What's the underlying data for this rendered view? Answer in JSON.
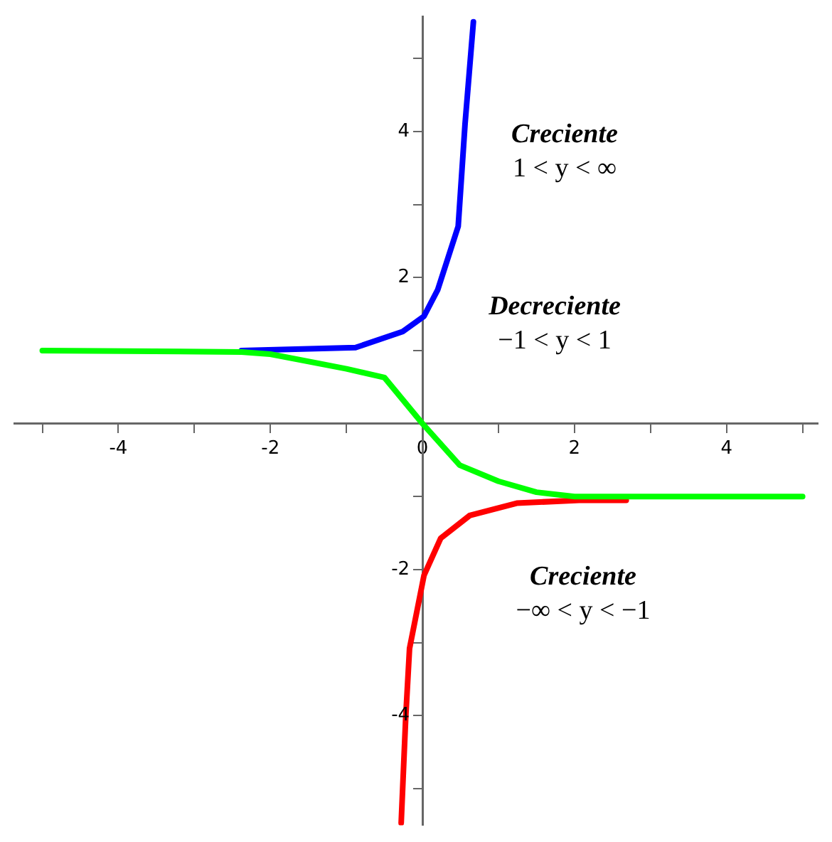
{
  "chart_data": {
    "type": "line",
    "x": [
      -5,
      -2.38,
      -2,
      -1,
      -0.5,
      0,
      0.49,
      1,
      1.5,
      2,
      3,
      5
    ],
    "series": [
      {
        "color": "#00ff00",
        "values": [
          1,
          0.98,
          0.95,
          0.75,
          0.63,
          0,
          -0.57,
          -0.79,
          -0.94,
          -1,
          -1,
          -1
        ]
      },
      {
        "color": "#0000ff",
        "x": [
          -2.38,
          -0.88,
          -0.26,
          0.02,
          0.2,
          0.47,
          0.56,
          0.67
        ],
        "values": [
          1,
          1.04,
          1.26,
          1.47,
          1.83,
          2.7,
          4.1,
          5.5
        ]
      },
      {
        "color": "#ff0000",
        "x": [
          -0.28,
          -0.22,
          -0.17,
          0.02,
          0.24,
          0.62,
          1.24,
          2.06,
          2.68
        ],
        "values": [
          -5.47,
          -4.02,
          -3.08,
          -2.08,
          -1.57,
          -1.26,
          -1.09,
          -1.05,
          -1.05
        ]
      }
    ],
    "xlim": [
      -5.37,
      5.2
    ],
    "ylim": [
      -5.5,
      5.57
    ],
    "xticks": [
      {
        "value": -5,
        "label": null
      },
      -4,
      {
        "value": -3,
        "label": null
      },
      -2,
      {
        "value": -1,
        "label": null
      },
      0,
      {
        "value": 1,
        "label": null
      },
      2,
      {
        "value": 3,
        "label": null
      },
      4,
      {
        "value": 5,
        "label": null
      }
    ],
    "yticks": [
      {
        "value": -5,
        "label": null
      },
      -4,
      {
        "value": -3,
        "label": null
      },
      -2,
      {
        "value": -1,
        "label": null
      },
      {
        "value": 1,
        "label": null
      },
      2,
      {
        "value": 3,
        "label": null
      },
      4,
      {
        "value": 5,
        "label": null
      }
    ],
    "grid": false,
    "legend": false,
    "annotations": [
      "Creciente\n1 < y < ∞",
      "Decreciente\n−1 < y < 1",
      "Creciente\n−∞ < y < −1"
    ]
  }
}
